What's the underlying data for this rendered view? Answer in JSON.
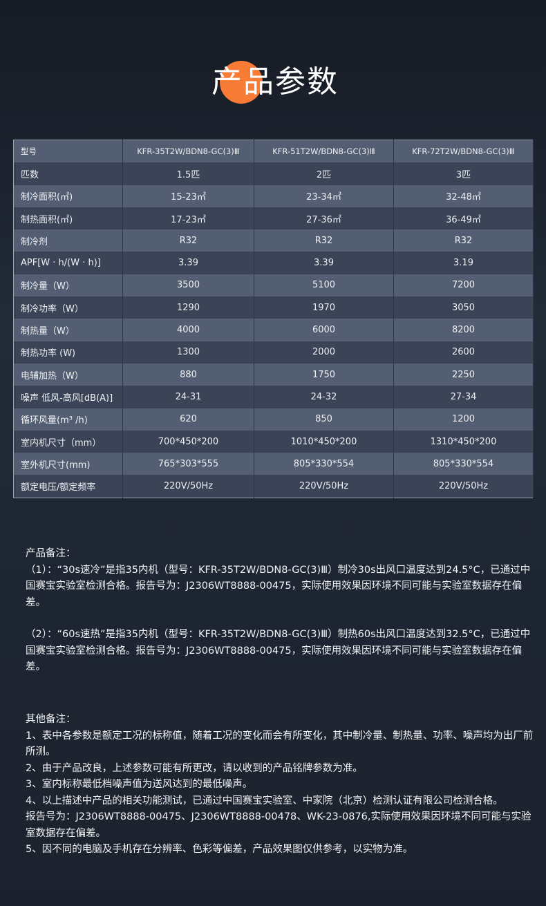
{
  "title": "产品参数",
  "accent": "#f97c36",
  "table": {
    "header": [
      "型号",
      "KFR-35T2W/BDN8-GC(3)Ⅲ",
      "KFR-51T2W/BDN8-GC(3)Ⅲ",
      "KFR-72T2W/BDN8-GC(3)Ⅲ"
    ],
    "rows": [
      [
        "匹数",
        "1.5匹",
        "2匹",
        "3匹"
      ],
      [
        "制冷面积(㎡)",
        "15-23㎡",
        "23-34㎡",
        "32-48㎡"
      ],
      [
        "制热面积(㎡)",
        "17-23㎡",
        "27-36㎡",
        "36-49㎡"
      ],
      [
        "制冷剂",
        "R32",
        "R32",
        "R32"
      ],
      [
        "APF[W · h/(W · h)]",
        "3.39",
        "3.39",
        "3.19"
      ],
      [
        "制冷量（W）",
        "3500",
        "5100",
        "7200"
      ],
      [
        "制冷功率（W）",
        "1290",
        "1970",
        "3050"
      ],
      [
        "制热量（W）",
        "4000",
        "6000",
        "8200"
      ],
      [
        "制热功率 (W)",
        "1300",
        "2000",
        "2600"
      ],
      [
        "电辅加热（W）",
        "880",
        "1750",
        "2250"
      ],
      [
        "噪声 低风-高风[dB(A)]",
        "24-31",
        "24-32",
        "27-34"
      ],
      [
        "循环风量(m³ /h)",
        "620",
        "850",
        "1200"
      ],
      [
        "室内机尺寸（mm）",
        "700*450*200",
        "1010*450*200",
        "1310*450*200"
      ],
      [
        "室外机尺寸(mm)",
        "765*303*555",
        "805*330*554",
        "805*330*554"
      ],
      [
        "额定电压/额定频率",
        "220V/50Hz",
        "220V/50Hz",
        "220V/50Hz"
      ]
    ]
  },
  "product_notes": {
    "heading": "产品备注：",
    "items": [
      "（1）：“30s速冷”是指35内机（型号：KFR-35T2W/BDN8-GC(3)Ⅲ）制冷30s出风口温度达到24.5°C，已通过中国赛宝实验室检测合格。报告号为：J2306WT8888-00475，实际使用效果因环境不同可能与实验室数据存在偏差。",
      "（2）：“60s速热”是指35内机（型号：KFR-35T2W/BDN8-GC(3)Ⅲ）制热60s出风口温度达到32.5°C，已通过中国赛宝实验室检测合格。报告号为：J2306WT8888-00475，实际使用效果因环境不同可能与实验室数据存在偏差。"
    ]
  },
  "other_notes": {
    "heading": "其他备注：",
    "items": [
      "1、表中各参数是额定工况的标称值，随着工况的变化而会有所变化，其中制冷量、制热量、功率、噪声均为出厂前所测。",
      "2、由于产品改良，上述参数可能有所更改，请以收到的产品铭牌参数为准。",
      "3、室内标称最低档噪声值为送风达到的最低噪声。",
      "4、以上描述中产品的相关功能测试，已通过中国赛宝实验室、中家院（北京）检测认证有限公司检测合格。",
      "报告号为：J2306WT8888-00475、J2306WT8888-00478、WK-23-0876,实际使用效果因环境不同可能与实验室数据存在偏差。",
      "5、因不同的电脑及手机存在分辨率、色彩等偏差，产品效果图仅供参考，以实物为准。"
    ]
  }
}
